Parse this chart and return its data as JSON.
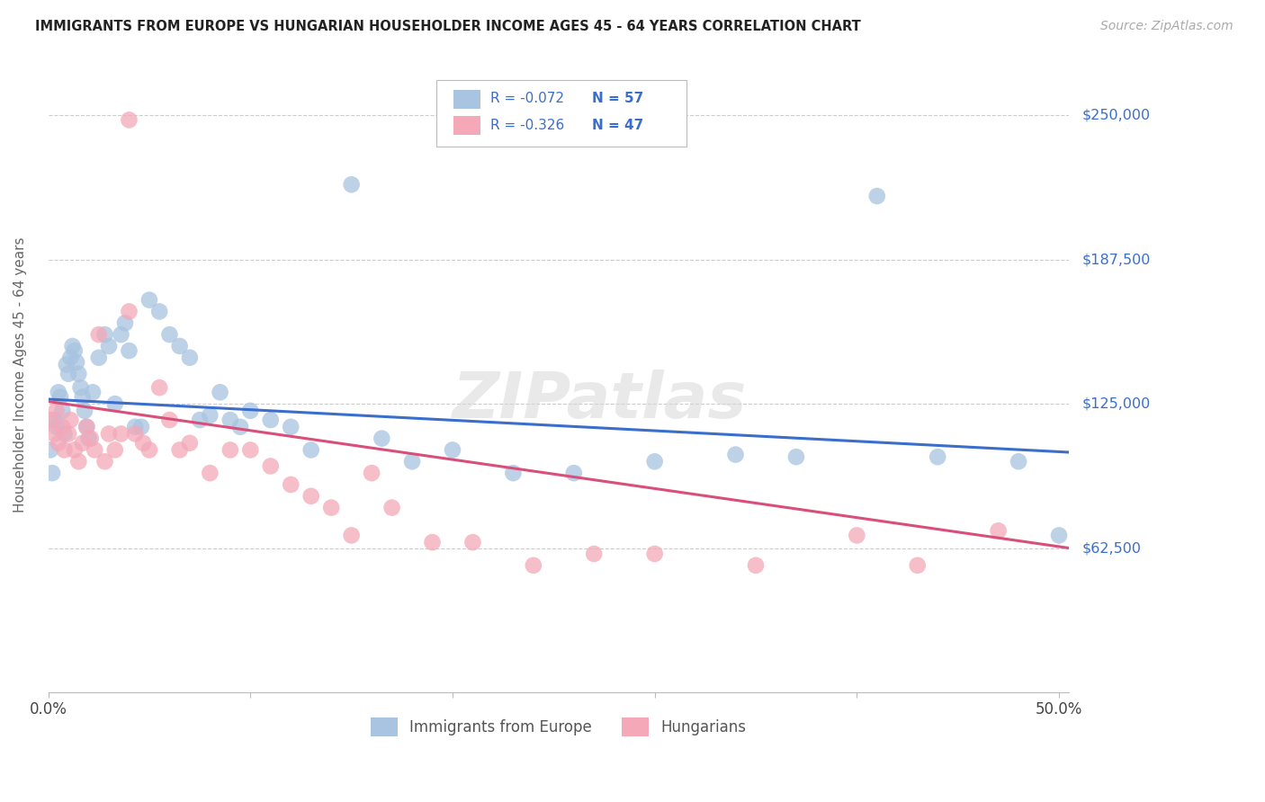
{
  "title": "IMMIGRANTS FROM EUROPE VS HUNGARIAN HOUSEHOLDER INCOME AGES 45 - 64 YEARS CORRELATION CHART",
  "source": "Source: ZipAtlas.com",
  "ylabel": "Householder Income Ages 45 - 64 years",
  "ytick_values": [
    62500,
    125000,
    187500,
    250000
  ],
  "ytick_labels": [
    "$62,500",
    "$125,000",
    "$187,500",
    "$250,000"
  ],
  "ymin": 0,
  "ymax": 275000,
  "xmin": 0.0,
  "xmax": 0.505,
  "legend_r_blue": "-0.072",
  "legend_n_blue": "57",
  "legend_r_pink": "-0.326",
  "legend_n_pink": "47",
  "watermark": "ZIPatlas",
  "blue_color": "#a8c4e0",
  "pink_color": "#f4a8b8",
  "line_blue": "#3a6ecc",
  "line_pink": "#d94f7a",
  "blue_scatter_x": [
    0.001,
    0.002,
    0.003,
    0.004,
    0.005,
    0.006,
    0.007,
    0.008,
    0.009,
    0.01,
    0.011,
    0.012,
    0.013,
    0.014,
    0.015,
    0.016,
    0.017,
    0.018,
    0.019,
    0.02,
    0.022,
    0.025,
    0.028,
    0.03,
    0.033,
    0.036,
    0.038,
    0.04,
    0.043,
    0.046,
    0.05,
    0.055,
    0.06,
    0.065,
    0.07,
    0.075,
    0.08,
    0.085,
    0.09,
    0.095,
    0.1,
    0.11,
    0.12,
    0.13,
    0.15,
    0.165,
    0.18,
    0.2,
    0.23,
    0.26,
    0.3,
    0.34,
    0.37,
    0.41,
    0.44,
    0.48,
    0.5
  ],
  "blue_scatter_y": [
    105000,
    95000,
    118000,
    115000,
    130000,
    128000,
    122000,
    112000,
    142000,
    138000,
    145000,
    150000,
    148000,
    143000,
    138000,
    132000,
    128000,
    122000,
    115000,
    110000,
    130000,
    145000,
    155000,
    150000,
    125000,
    155000,
    160000,
    148000,
    115000,
    115000,
    170000,
    165000,
    155000,
    150000,
    145000,
    118000,
    120000,
    130000,
    118000,
    115000,
    122000,
    118000,
    115000,
    105000,
    220000,
    110000,
    100000,
    105000,
    95000,
    95000,
    100000,
    103000,
    102000,
    215000,
    102000,
    100000,
    68000
  ],
  "pink_scatter_x": [
    0.001,
    0.003,
    0.004,
    0.005,
    0.007,
    0.008,
    0.01,
    0.011,
    0.013,
    0.015,
    0.017,
    0.019,
    0.021,
    0.023,
    0.025,
    0.028,
    0.03,
    0.033,
    0.036,
    0.04,
    0.043,
    0.047,
    0.05,
    0.055,
    0.06,
    0.065,
    0.07,
    0.08,
    0.09,
    0.1,
    0.11,
    0.12,
    0.13,
    0.14,
    0.15,
    0.16,
    0.17,
    0.19,
    0.21,
    0.24,
    0.27,
    0.3,
    0.35,
    0.04,
    0.4,
    0.43,
    0.47
  ],
  "pink_scatter_y": [
    118000,
    112000,
    122000,
    108000,
    115000,
    105000,
    112000,
    118000,
    105000,
    100000,
    108000,
    115000,
    110000,
    105000,
    155000,
    100000,
    112000,
    105000,
    112000,
    165000,
    112000,
    108000,
    105000,
    132000,
    118000,
    105000,
    108000,
    95000,
    105000,
    105000,
    98000,
    90000,
    85000,
    80000,
    68000,
    95000,
    80000,
    65000,
    65000,
    55000,
    60000,
    60000,
    55000,
    248000,
    68000,
    55000,
    70000
  ],
  "blue_line_x": [
    0.0,
    0.505
  ],
  "blue_line_y": [
    127000,
    104000
  ],
  "pink_line_x": [
    0.0,
    0.505
  ],
  "pink_line_y": [
    126000,
    62500
  ]
}
